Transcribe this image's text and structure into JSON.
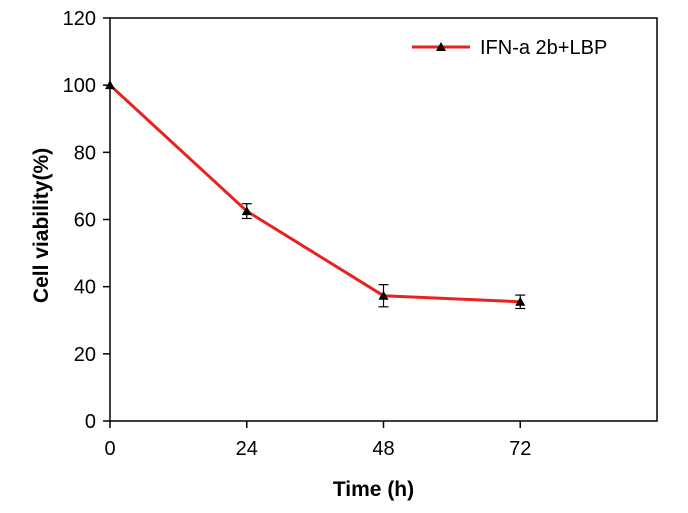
{
  "chart_data": {
    "type": "line",
    "title": "",
    "xlabel": "Time (h)",
    "ylabel": "Cell viability(%)",
    "x": [
      0,
      24,
      48,
      72
    ],
    "x_ticks": [
      "0",
      "24",
      "48",
      "72"
    ],
    "xlim": [
      0,
      96
    ],
    "ylim": [
      0,
      120
    ],
    "y_ticks": [
      "0",
      "20",
      "40",
      "60",
      "80",
      "100",
      "120"
    ],
    "y_tick_values": [
      0,
      20,
      40,
      60,
      80,
      100,
      120
    ],
    "grid": false,
    "legend_position": "top-right",
    "series": [
      {
        "name": "IFN-a 2b+LBP",
        "values": [
          100,
          62.5,
          37.3,
          35.5
        ],
        "errors": [
          0,
          2.2,
          3.3,
          2.0
        ],
        "color": "#e8231f",
        "marker": "triangle"
      }
    ]
  }
}
